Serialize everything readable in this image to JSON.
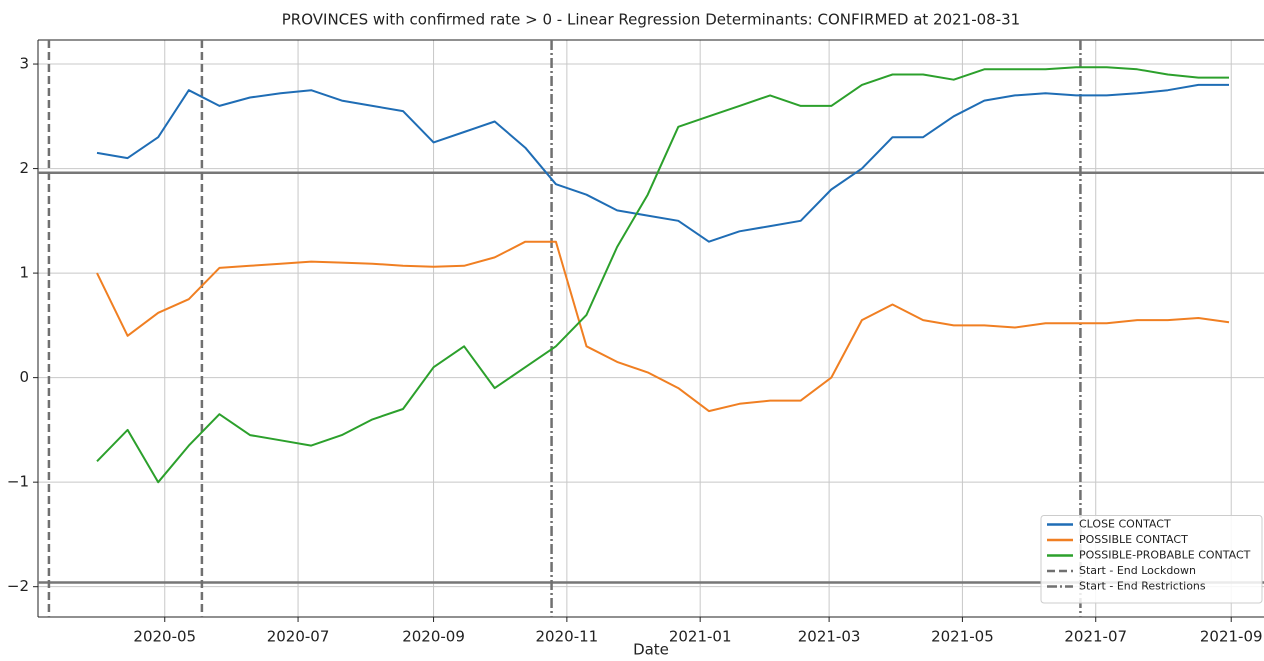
{
  "chart_data": {
    "type": "line",
    "title": "PROVINCES with confirmed rate > 0 - Linear Regression Determinants: CONFIRMED at 2021-08-31",
    "xlabel": "Date",
    "x": [
      "2020-03-31",
      "2020-04-14",
      "2020-04-28",
      "2020-05-12",
      "2020-05-26",
      "2020-06-09",
      "2020-06-23",
      "2020-07-07",
      "2020-07-21",
      "2020-08-04",
      "2020-08-18",
      "2020-09-01",
      "2020-09-15",
      "2020-09-29",
      "2020-10-13",
      "2020-10-27",
      "2020-11-10",
      "2020-11-24",
      "2020-12-08",
      "2020-12-22",
      "2021-01-05",
      "2021-01-19",
      "2021-02-02",
      "2021-02-16",
      "2021-03-02",
      "2021-03-16",
      "2021-03-30",
      "2021-04-13",
      "2021-04-27",
      "2021-05-11",
      "2021-05-25",
      "2021-06-08",
      "2021-06-22",
      "2021-07-06",
      "2021-07-20",
      "2021-08-03",
      "2021-08-17",
      "2021-08-31"
    ],
    "series": [
      {
        "name": "CLOSE CONTACT",
        "color": "#1f6db5",
        "values": [
          2.15,
          2.1,
          2.3,
          2.75,
          2.6,
          2.68,
          2.72,
          2.75,
          2.65,
          2.6,
          2.55,
          2.25,
          2.35,
          2.45,
          2.2,
          1.85,
          1.75,
          1.6,
          1.55,
          1.5,
          1.3,
          1.4,
          1.45,
          1.5,
          1.8,
          2.0,
          2.3,
          2.3,
          2.5,
          2.65,
          2.7,
          2.72,
          2.7,
          2.7,
          2.72,
          2.75,
          2.8,
          2.8
        ]
      },
      {
        "name": "POSSIBLE CONTACT",
        "color": "#f07f22",
        "values": [
          1.0,
          0.4,
          0.62,
          0.75,
          1.05,
          1.07,
          1.09,
          1.11,
          1.1,
          1.09,
          1.07,
          1.06,
          1.07,
          1.15,
          1.3,
          1.3,
          0.3,
          0.15,
          0.05,
          -0.1,
          -0.32,
          -0.25,
          -0.22,
          -0.22,
          0.0,
          0.55,
          0.7,
          0.55,
          0.5,
          0.5,
          0.48,
          0.52,
          0.52,
          0.52,
          0.55,
          0.55,
          0.57,
          0.53
        ]
      },
      {
        "name": "POSSIBLE-PROBABLE CONTACT",
        "color": "#2ca02c",
        "values": [
          -0.8,
          -0.5,
          -1.0,
          -0.65,
          -0.35,
          -0.55,
          -0.6,
          -0.65,
          -0.55,
          -0.4,
          -0.3,
          0.1,
          0.3,
          -0.1,
          0.1,
          0.3,
          0.6,
          1.25,
          1.75,
          2.4,
          2.5,
          2.6,
          2.7,
          2.6,
          2.6,
          2.8,
          2.9,
          2.9,
          2.85,
          2.95,
          2.95,
          2.95,
          2.97,
          2.97,
          2.95,
          2.9,
          2.87,
          2.87
        ]
      }
    ],
    "vlines": [
      {
        "name": "Start - End Lockdown",
        "style": "dashed",
        "color": "#707070",
        "x": [
          "2020-03-09",
          "2020-05-18"
        ]
      },
      {
        "name": "Start - End Restrictions",
        "style": "dashdot",
        "color": "#707070",
        "x": [
          "2020-10-25",
          "2021-06-24"
        ]
      }
    ],
    "hlines": [
      1.96,
      -1.96
    ],
    "hline_color": "#777777",
    "xlim": [
      "2020-03-04",
      "2021-09-16"
    ],
    "xticks": [
      {
        "value": "2020-05-01",
        "label": "2020-05"
      },
      {
        "value": "2020-07-01",
        "label": "2020-07"
      },
      {
        "value": "2020-09-01",
        "label": "2020-09"
      },
      {
        "value": "2020-11-01",
        "label": "2020-11"
      },
      {
        "value": "2021-01-01",
        "label": "2021-01"
      },
      {
        "value": "2021-03-01",
        "label": "2021-03"
      },
      {
        "value": "2021-05-01",
        "label": "2021-05"
      },
      {
        "value": "2021-07-01",
        "label": "2021-07"
      },
      {
        "value": "2021-09-01",
        "label": "2021-09"
      }
    ],
    "ylim": [
      -2.29,
      3.23
    ],
    "yticks": [
      {
        "value": -2,
        "label": "−2"
      },
      {
        "value": -1,
        "label": "−1"
      },
      0,
      1,
      2,
      3
    ],
    "grid": true,
    "legend": "lower right"
  }
}
